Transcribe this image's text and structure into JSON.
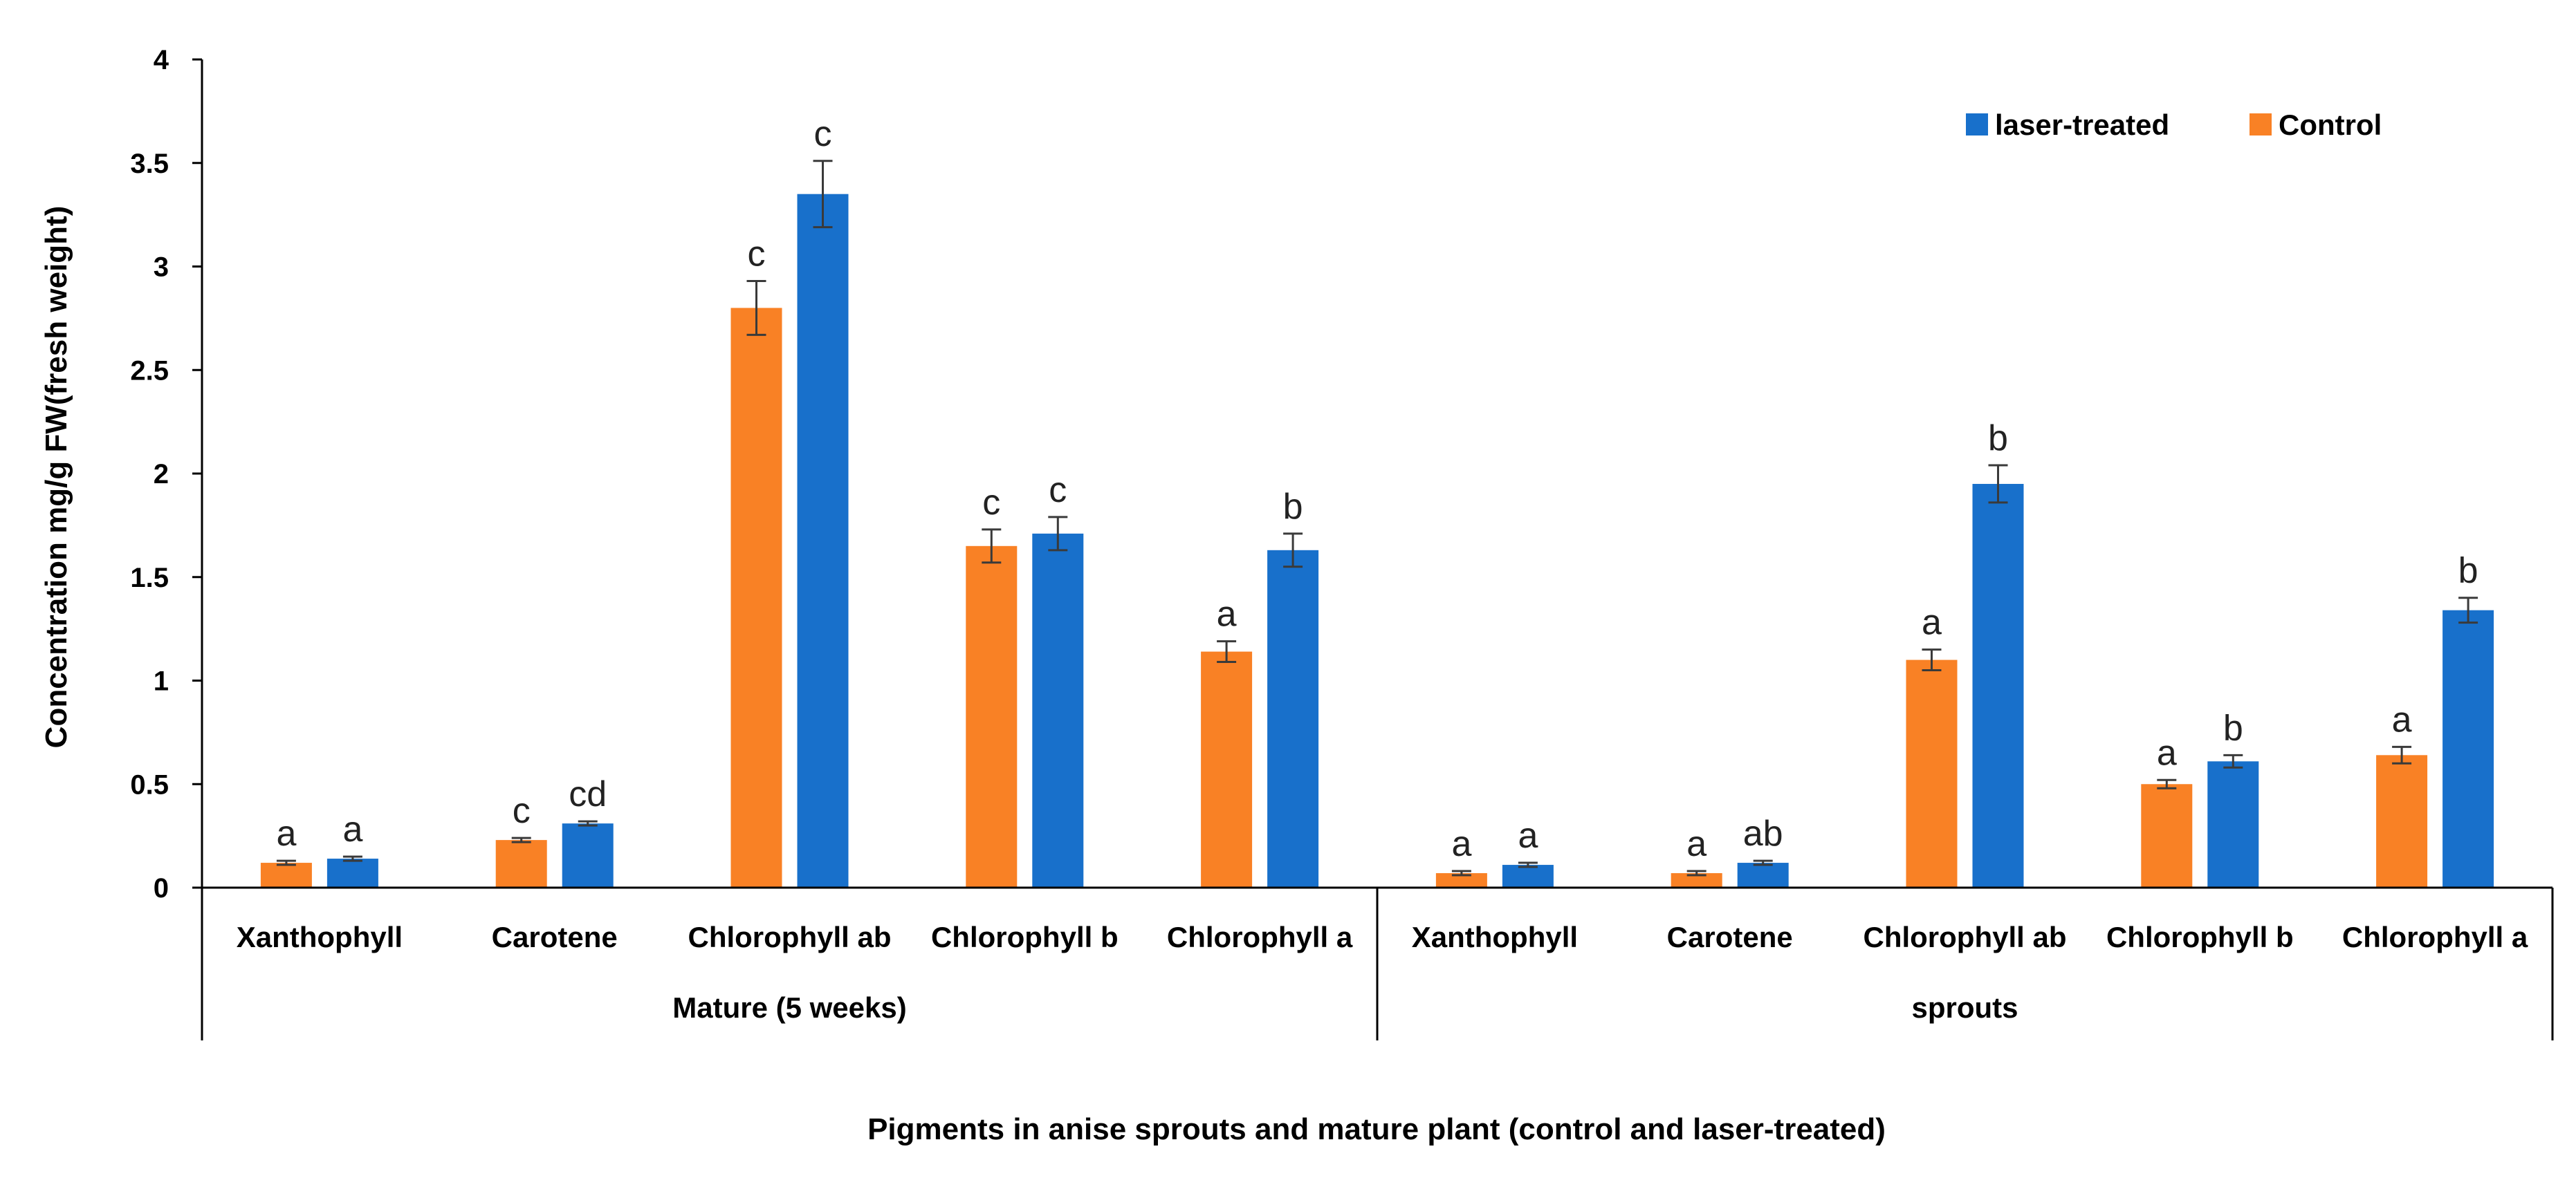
{
  "chart_data": {
    "type": "bar",
    "title": "",
    "xlabel": "Pigments in anise sprouts and mature plant (control and laser-treated)",
    "ylabel": "Concentration mg/g FW(fresh weight)",
    "ylim": [
      0,
      4
    ],
    "yticks": [
      0,
      0.5,
      1,
      1.5,
      2,
      2.5,
      3,
      3.5,
      4
    ],
    "ytick_labels": [
      "0",
      "0.5",
      "1",
      "1.5",
      "2",
      "2.5",
      "3",
      "3.5",
      "4"
    ],
    "grid": false,
    "legend_position": "top-right",
    "groups": [
      {
        "label": "Mature (5 weeks)",
        "categories": [
          "Xanthophyll",
          "Carotene",
          "Chlorophyll ab",
          "Chlorophyll b",
          "Chlorophyll a"
        ]
      },
      {
        "label": "sprouts",
        "categories": [
          "Xanthophyll",
          "Carotene",
          "Chlorophyll ab",
          "Chlorophyll b",
          "Chlorophyll a"
        ]
      }
    ],
    "series": [
      {
        "name": "Control",
        "color": "#F98125",
        "values": [
          0.12,
          0.23,
          2.8,
          1.65,
          1.14,
          0.07,
          0.07,
          1.1,
          0.5,
          0.64
        ],
        "errors": [
          0.01,
          0.01,
          0.13,
          0.08,
          0.05,
          0.01,
          0.01,
          0.05,
          0.02,
          0.04
        ],
        "letters": [
          "a",
          "c",
          "c",
          "c",
          "a",
          "a",
          "a",
          "a",
          "a",
          "a"
        ]
      },
      {
        "name": "laser-treated",
        "color": "#1870CB",
        "values": [
          0.14,
          0.31,
          3.35,
          1.71,
          1.63,
          0.11,
          0.12,
          1.95,
          0.61,
          1.34
        ],
        "errors": [
          0.01,
          0.01,
          0.16,
          0.08,
          0.08,
          0.01,
          0.01,
          0.09,
          0.03,
          0.06
        ],
        "letters": [
          "a",
          "cd",
          "c",
          "c",
          "b",
          "a",
          "ab",
          "b",
          "b",
          "b"
        ]
      }
    ],
    "legend_order": [
      "laser-treated",
      "Control"
    ]
  }
}
